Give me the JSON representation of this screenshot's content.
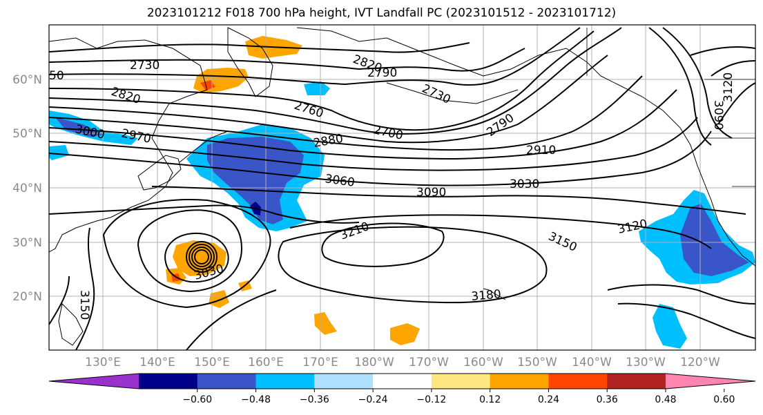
{
  "title": "2023101212 F018 700 hPa height, IVT Landfall PC (2023101512 - 2023101712)",
  "map": {
    "latitude_labels": [
      "60°N",
      "50°N",
      "40°N",
      "30°N",
      "20°N"
    ],
    "longitude_labels": [
      "130°E",
      "140°E",
      "150°E",
      "160°E",
      "170°E",
      "180°W",
      "170°W",
      "160°W",
      "150°W",
      "140°W",
      "130°W",
      "120°W"
    ],
    "contour_labels": [
      "2730",
      "2820",
      "2790",
      "2730",
      "2760",
      "2700",
      "2790",
      "2880",
      "2910",
      "3060",
      "3090",
      "3030",
      "3000",
      "2970",
      "3210",
      "3150",
      "3120",
      "3180",
      "3150",
      "3120",
      "3090",
      "2820",
      "50",
      "3030"
    ],
    "colors": {
      "contour": "#000000",
      "coastline": "#000000",
      "grid": "#b0b0b0"
    }
  },
  "colorbar": {
    "ticks": [
      "−0.60",
      "−0.48",
      "−0.36",
      "−0.24",
      "−0.12",
      "0.12",
      "0.24",
      "0.36",
      "0.48",
      "0.60"
    ],
    "colors": [
      "#9932CC",
      "#00008B",
      "#3A55C8",
      "#00BFFF",
      "#B0E0FF",
      "#FFFFFF",
      "#FFE680",
      "#FFA500",
      "#FF4500",
      "#B22222",
      "#FF85B0"
    ]
  }
}
